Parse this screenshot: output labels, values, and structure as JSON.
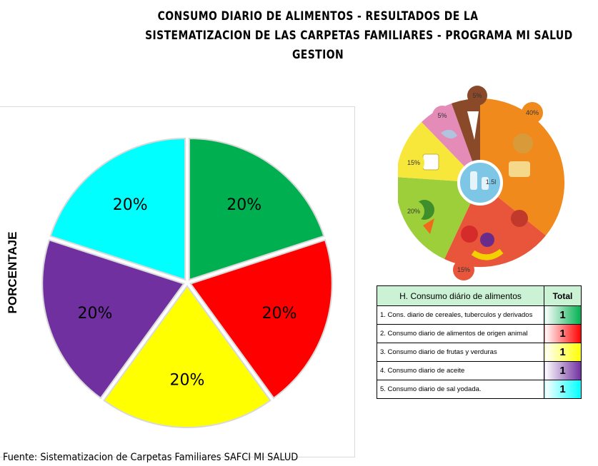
{
  "title": {
    "line1": "CONSUMO DIARIO DE ALIMENTOS - RESULTADOS DE LA",
    "line2": "SISTEMATIZACION DE LAS CARPETAS FAMILIARES - PROGRAMA MI SALUD",
    "line3": "GESTION"
  },
  "chart_data": {
    "type": "pie",
    "ylabel": "PORCENTAJE",
    "values": [
      20,
      20,
      20,
      20,
      20
    ],
    "labels": [
      "20%",
      "20%",
      "20%",
      "20%",
      "20%"
    ],
    "colors": [
      "#00b050",
      "#ff0000",
      "#ffff00",
      "#7030a0",
      "#00ffff"
    ]
  },
  "plate": {
    "labels": [
      "5%",
      "40%",
      "15%",
      "15%",
      "20%",
      "5%",
      "1.5l"
    ]
  },
  "table": {
    "header_label": "H. Consumo diário de alimentos",
    "header_total": "Total",
    "rows": [
      {
        "label": "1. Cons. diario de cereales, tuberculos y derivados",
        "total": "1",
        "color": "#00b050"
      },
      {
        "label": "2. Consumo diario de alimentos de origen animal",
        "total": "1",
        "color": "#ff0000"
      },
      {
        "label": "3. Consumo diario de frutas y verduras",
        "total": "1",
        "color": "#ffff00"
      },
      {
        "label": "4. Consumo diario de aceite",
        "total": "1",
        "color": "#7030a0"
      },
      {
        "label": "5. Consumo diario de sal yodada.",
        "total": "1",
        "color": "#00ffff"
      }
    ]
  },
  "footer": "Fuente: Sistematizacion de Carpetas Familiares SAFCI MI SALUD"
}
